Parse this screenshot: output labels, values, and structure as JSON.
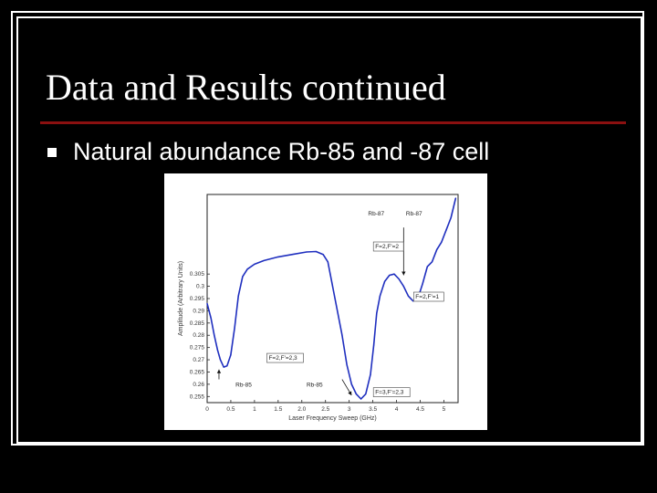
{
  "slide": {
    "title": "Data and Results continued",
    "bullet": "Natural abundance Rb-85 and -87 cell",
    "accent_color": "#8b1010",
    "bullet_icon": "square-bullet-icon"
  },
  "chart_data": {
    "type": "line",
    "title": "",
    "xlabel": "Laser Frequency Sweep (GHz)",
    "ylabel": "Amplitude (Arbitrary Units)",
    "xlim": [
      0,
      5.3
    ],
    "ylim": [
      0.2525,
      0.3375
    ],
    "x_ticks": [
      0,
      0.5,
      1,
      1.5,
      2,
      2.5,
      3,
      3.5,
      4,
      4.5,
      5
    ],
    "x_tick_labels": [
      "0",
      "0.5",
      "1",
      "1.5",
      "2.0",
      "2.5",
      "3",
      "3.5",
      "4",
      "4.5",
      "5"
    ],
    "y_ticks": [
      0.255,
      0.26,
      0.265,
      0.27,
      0.275,
      0.28,
      0.285,
      0.29,
      0.295,
      0.3,
      0.305
    ],
    "y_tick_labels": [
      "0.255",
      "0.26",
      "0.265",
      "0.27",
      "0.275",
      "0.28",
      "0.285",
      "0.29",
      "0.295",
      "0.3",
      "0.305"
    ],
    "grid": false,
    "series": [
      {
        "color": "#1f2fbf",
        "x": [
          0.0,
          0.08,
          0.15,
          0.22,
          0.28,
          0.35,
          0.42,
          0.5,
          0.58,
          0.66,
          0.75,
          0.85,
          1.0,
          1.2,
          1.5,
          1.8,
          2.1,
          2.3,
          2.45,
          2.55,
          2.6,
          2.7,
          2.85,
          2.95,
          3.05,
          3.15,
          3.25,
          3.35,
          3.45,
          3.52,
          3.58,
          3.65,
          3.75,
          3.85,
          3.95,
          4.05,
          4.15,
          4.25,
          4.35,
          4.45,
          4.55,
          4.65,
          4.75,
          4.85,
          4.95,
          5.05,
          5.15,
          5.25
        ],
        "y": [
          0.293,
          0.287,
          0.28,
          0.274,
          0.27,
          0.267,
          0.2675,
          0.272,
          0.283,
          0.296,
          0.304,
          0.307,
          0.309,
          0.3105,
          0.312,
          0.313,
          0.314,
          0.3142,
          0.313,
          0.31,
          0.305,
          0.295,
          0.28,
          0.268,
          0.26,
          0.256,
          0.254,
          0.256,
          0.264,
          0.276,
          0.289,
          0.296,
          0.302,
          0.3045,
          0.305,
          0.303,
          0.3,
          0.296,
          0.294,
          0.295,
          0.301,
          0.308,
          0.31,
          0.315,
          0.318,
          0.323,
          0.328,
          0.336
        ]
      }
    ],
    "annotations": [
      {
        "text": "Rb-87",
        "x": 3.4,
        "y": 0.329
      },
      {
        "text": "Rb-87",
        "x": 4.2,
        "y": 0.329
      },
      {
        "text": "F=2,F'=2",
        "x": 3.55,
        "y": 0.3155,
        "boxed": true
      },
      {
        "text": "F=2,F'=1",
        "x": 4.4,
        "y": 0.295,
        "boxed": true
      },
      {
        "text": "F=2,F'=2,3",
        "x": 1.3,
        "y": 0.27,
        "boxed": true
      },
      {
        "text": "F=3,F'=2,3",
        "x": 3.55,
        "y": 0.256,
        "boxed": true
      },
      {
        "text": "Rb-85",
        "x": 0.6,
        "y": 0.259
      },
      {
        "text": "Rb-85",
        "x": 2.1,
        "y": 0.259
      }
    ],
    "arrows": [
      {
        "x1": 4.15,
        "y1": 0.324,
        "x2": 4.15,
        "y2": 0.3045
      },
      {
        "x1": 2.85,
        "y1": 0.262,
        "x2": 3.05,
        "y2": 0.2555
      },
      {
        "x1": 0.25,
        "y1": 0.262,
        "x2": 0.25,
        "y2": 0.266
      }
    ]
  }
}
